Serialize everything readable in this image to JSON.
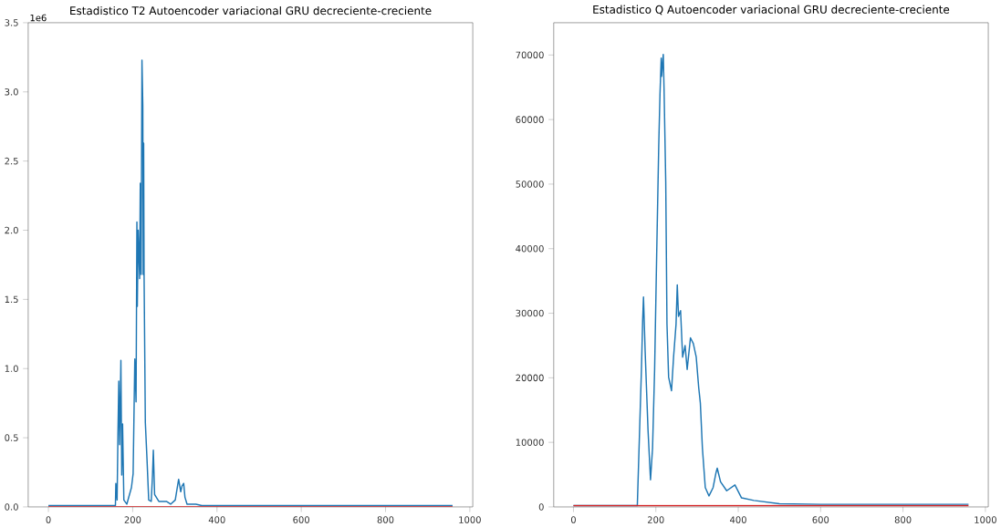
{
  "chart_data": [
    {
      "type": "line",
      "title": "Estadistico T2 Autoencoder variacional GRU decreciente-creciente",
      "annotations": [
        "1e6"
      ],
      "xlim": [
        -48,
        1007
      ],
      "ylim": [
        0,
        3.5
      ],
      "xticks": [
        0,
        200,
        400,
        600,
        800,
        1000
      ],
      "yticks": [
        {
          "value": 0,
          "label": "0.0"
        },
        {
          "value": 0.5,
          "label": "0.5"
        },
        {
          "value": 1,
          "label": "1.0"
        },
        {
          "value": 1.5,
          "label": "1.5"
        },
        {
          "value": 2,
          "label": "2.0"
        },
        {
          "value": 2.5,
          "label": "2.5"
        },
        {
          "value": 3,
          "label": "3.0"
        },
        {
          "value": 3.5,
          "label": "3.5"
        }
      ],
      "series": [
        {
          "color": "#1f77b4",
          "x": [
            0,
            159,
            160,
            163,
            165,
            167,
            169,
            172,
            174,
            176,
            179,
            186,
            197,
            201,
            205,
            208,
            210,
            211,
            213,
            216.5,
            218,
            220,
            222,
            224,
            225,
            226,
            227,
            230,
            234,
            238,
            244,
            247,
            249,
            252,
            262,
            280,
            290,
            301,
            309,
            314,
            317,
            321,
            324,
            329,
            350,
            364,
            959
          ],
          "values": [
            0.01,
            0.01,
            0.17,
            0.05,
            0.53,
            0.91,
            0.45,
            1.06,
            0.23,
            0.6,
            0.05,
            0.02,
            0.14,
            0.24,
            1.07,
            0.76,
            2.06,
            1.45,
            2.0,
            1.65,
            2.34,
            1.68,
            3.23,
            2.9,
            1.68,
            2.63,
            1.68,
            0.61,
            0.34,
            0.05,
            0.04,
            0.23,
            0.41,
            0.09,
            0.04,
            0.04,
            0.02,
            0.05,
            0.2,
            0.11,
            0.15,
            0.17,
            0.07,
            0.02,
            0.02,
            0.01,
            0.01
          ]
        },
        {
          "color": "#d62728",
          "x": [
            0,
            959
          ],
          "values": [
            0,
            0
          ]
        }
      ]
    },
    {
      "type": "line",
      "title": "Estadistico Q Autoencoder variacional GRU decreciente-creciente",
      "xlim": [
        -48,
        1007
      ],
      "ylim": [
        0,
        75000
      ],
      "xticks": [
        0,
        200,
        400,
        600,
        800,
        1000
      ],
      "yticks": [
        0,
        10000,
        20000,
        30000,
        40000,
        50000,
        60000,
        70000
      ],
      "series": [
        {
          "color": "#1f77b4",
          "x": [
            0,
            155,
            165,
            168,
            170,
            174,
            181,
            187,
            192,
            197,
            202,
            207,
            210,
            213,
            214,
            218,
            220,
            224,
            227,
            231,
            238,
            243,
            249,
            252,
            255,
            260,
            265,
            271,
            276,
            284,
            291,
            298,
            304,
            308,
            313,
            320,
            329,
            339,
            346,
            349,
            357,
            372,
            392,
            408,
            438,
            500,
            600,
            700,
            800,
            959
          ],
          "values": [
            200,
            200,
            21300,
            29000,
            32500,
            24100,
            11900,
            4200,
            9100,
            21300,
            39100,
            56000,
            63900,
            69500,
            66700,
            70100,
            64400,
            50300,
            28300,
            20100,
            18000,
            23200,
            28300,
            34400,
            29500,
            30400,
            23200,
            25000,
            21300,
            26200,
            25300,
            23200,
            18500,
            16100,
            9100,
            3000,
            1700,
            3000,
            5300,
            6000,
            3900,
            2500,
            3400,
            1400,
            1000,
            500,
            400,
            400,
            400,
            400
          ]
        },
        {
          "color": "#d62728",
          "x": [
            0,
            959
          ],
          "values": [
            200,
            200
          ]
        }
      ]
    }
  ]
}
